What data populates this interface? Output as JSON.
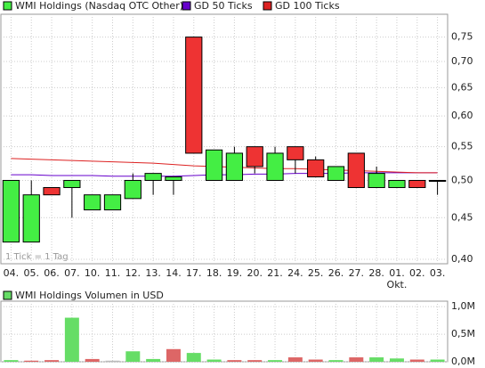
{
  "chart_data": [
    {
      "type": "candlestick",
      "categories": [
        "04.",
        "05.",
        "06.",
        "07.",
        "10.",
        "11.",
        "12.",
        "13.",
        "14.",
        "17.",
        "18.",
        "19.",
        "20.",
        "21.",
        "24.",
        "25.",
        "26.",
        "27.",
        "28.",
        "01.",
        "02.",
        "03."
      ],
      "x_annotation": "Okt.",
      "note": "1 Tick = 1 Tag",
      "series": [
        {
          "name": "WMI Holdings (Nasdaq OTC Other)",
          "color": "#44ee44",
          "down_color": "#ee3333",
          "open": [
            0.42,
            0.42,
            0.49,
            0.49,
            0.46,
            0.46,
            0.475,
            0.5,
            0.5,
            0.75,
            0.5,
            0.5,
            0.55,
            0.5,
            0.55,
            0.53,
            0.5,
            0.54,
            0.49,
            0.49,
            0.5,
            0.5
          ],
          "high": [
            0.5,
            0.5,
            0.49,
            0.5,
            0.48,
            0.48,
            0.51,
            0.51,
            0.505,
            0.75,
            0.545,
            0.55,
            0.55,
            0.55,
            0.55,
            0.535,
            0.52,
            0.54,
            0.52,
            0.5,
            0.5,
            0.5
          ],
          "low": [
            0.42,
            0.42,
            0.48,
            0.45,
            0.46,
            0.46,
            0.475,
            0.48,
            0.48,
            0.54,
            0.5,
            0.5,
            0.51,
            0.5,
            0.51,
            0.505,
            0.5,
            0.49,
            0.49,
            0.49,
            0.49,
            0.48
          ],
          "close": [
            0.5,
            0.48,
            0.48,
            0.5,
            0.48,
            0.48,
            0.5,
            0.51,
            0.505,
            0.54,
            0.545,
            0.54,
            0.52,
            0.54,
            0.53,
            0.505,
            0.52,
            0.49,
            0.51,
            0.5,
            0.49,
            0.5
          ]
        },
        {
          "name": "GD 50 Ticks",
          "color": "#6600cc",
          "values": [
            0.508,
            0.508,
            0.507,
            0.507,
            0.507,
            0.506,
            0.506,
            0.506,
            0.506,
            0.507,
            0.508,
            0.508,
            0.509,
            0.509,
            0.51,
            0.51,
            0.51,
            0.511,
            0.511,
            0.511,
            0.511,
            0.511
          ]
        },
        {
          "name": "GD 100 Ticks",
          "color": "#dd2222",
          "values": [
            0.532,
            0.531,
            0.53,
            0.529,
            0.528,
            0.527,
            0.526,
            0.525,
            0.523,
            0.521,
            0.52,
            0.519,
            0.518,
            0.517,
            0.517,
            0.516,
            0.515,
            0.514,
            0.513,
            0.512,
            0.511,
            0.511
          ]
        }
      ],
      "ylim": [
        0.395,
        0.8
      ],
      "log_scale": true,
      "grid": true,
      "yticks": [
        {
          "value": 0.4,
          "label": "0,40"
        },
        {
          "value": 0.45,
          "label": "0,45"
        },
        {
          "value": 0.5,
          "label": "0,50"
        },
        {
          "value": 0.55,
          "label": "0,55"
        },
        {
          "value": 0.6,
          "label": "0,60"
        },
        {
          "value": 0.65,
          "label": "0,65"
        },
        {
          "value": 0.7,
          "label": "0,70"
        },
        {
          "value": 0.75,
          "label": "0,75"
        }
      ]
    },
    {
      "type": "bar",
      "series": [
        {
          "name": "WMI Holdings Volumen in USD",
          "color": "#66dd66",
          "values": [
            30000,
            20000,
            30000,
            800000,
            50000,
            20000,
            190000,
            50000,
            230000,
            160000,
            40000,
            30000,
            30000,
            30000,
            80000,
            40000,
            30000,
            80000,
            80000,
            60000,
            40000,
            40000
          ],
          "colors": [
            "#66dd66",
            "#dd6666",
            "#dd6666",
            "#66dd66",
            "#dd6666",
            "#bbbbbb",
            "#66dd66",
            "#66dd66",
            "#dd6666",
            "#66dd66",
            "#66dd66",
            "#dd6666",
            "#dd6666",
            "#66dd66",
            "#dd6666",
            "#dd6666",
            "#66dd66",
            "#dd6666",
            "#66dd66",
            "#66dd66",
            "#dd6666",
            "#66dd66"
          ]
        }
      ],
      "ylim": [
        0,
        1100000
      ],
      "grid": true,
      "yticks": [
        {
          "value": 0,
          "label": "0,0M"
        },
        {
          "value": 500000,
          "label": "0,5M"
        },
        {
          "value": 1000000,
          "label": "1,0M"
        }
      ]
    }
  ]
}
